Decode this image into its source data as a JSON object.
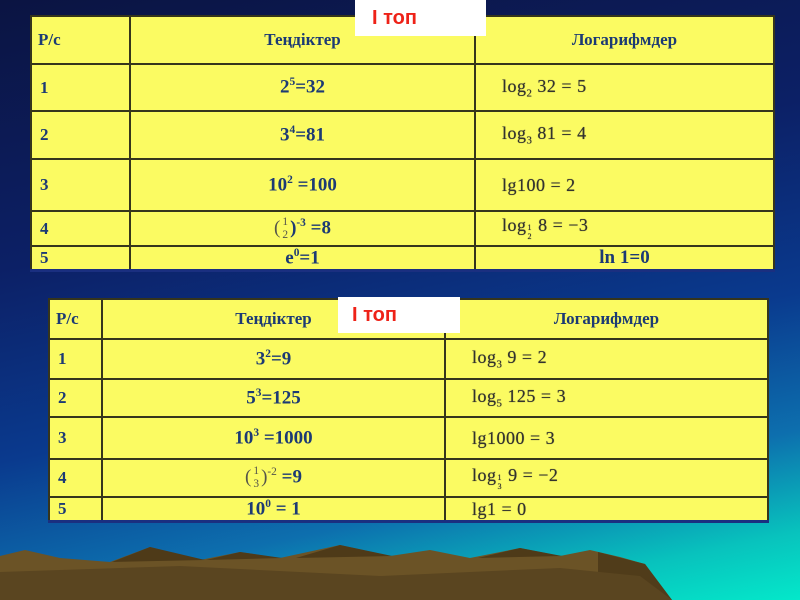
{
  "slide": {
    "group_label_top": "І топ",
    "group_label_middle": "І топ"
  },
  "colors": {
    "table_bg": "#FBFB62",
    "text_navy": "#1C3A74",
    "label_red": "#EE2218",
    "bg_navy_top": "#0B1442",
    "bg_teal_bottom": "#04E8CA",
    "mountain_brown": "#6B5326",
    "mountain_shadow": "#4E3A18"
  },
  "tables": [
    {
      "title": "equations-group-1",
      "headers": [
        "Р/с",
        "Теңдіктер",
        "Логарифмдер"
      ],
      "rows": [
        {
          "num": "1",
          "eq": [
            {
              "t": "txt",
              "v": "2"
            },
            {
              "t": "sup",
              "v": "5"
            },
            {
              "t": "txt",
              "v": "=32"
            }
          ],
          "log": [
            {
              "t": "txt",
              "v": "log"
            },
            {
              "t": "sub",
              "v": "2"
            },
            {
              "t": "txt",
              "v": " 32 = 5"
            }
          ],
          "log_style": "img"
        },
        {
          "num": "2",
          "eq": [
            {
              "t": "txt",
              "v": "3"
            },
            {
              "t": "sup",
              "v": "4"
            },
            {
              "t": "txt",
              "v": "=81"
            }
          ],
          "log": [
            {
              "t": "txt",
              "v": "log"
            },
            {
              "t": "sub",
              "v": "3"
            },
            {
              "t": "txt",
              "v": " 81 = 4"
            }
          ],
          "log_style": "img"
        },
        {
          "num": "3",
          "eq": [
            {
              "t": "txt",
              "v": "10"
            },
            {
              "t": "sup",
              "v": "2"
            },
            {
              "t": "txt",
              "v": " =100"
            }
          ],
          "log": [
            {
              "t": "txt",
              "v": "lg100 = 2"
            }
          ],
          "log_style": "img"
        },
        {
          "num": "4",
          "eq": [
            {
              "t": "faint",
              "v": "("
            },
            {
              "t": "frac",
              "n": "1",
              "d": "2"
            },
            {
              "t": "txt",
              "v": ")"
            },
            {
              "t": "sup",
              "v": "-3"
            },
            {
              "t": "txt",
              "v": " =8"
            }
          ],
          "log": [
            {
              "t": "txt",
              "v": "log"
            },
            {
              "t": "subfrac",
              "n": "1",
              "d": "2"
            },
            {
              "t": "txt",
              "v": " 8 = −3"
            }
          ],
          "log_style": "img"
        },
        {
          "num": "5",
          "eq": [
            {
              "t": "txt",
              "v": "e"
            },
            {
              "t": "sup",
              "v": "0"
            },
            {
              "t": "txt",
              "v": "=1"
            }
          ],
          "log": [
            {
              "t": "txt",
              "v": "ln 1=0"
            }
          ],
          "log_style": "navy"
        }
      ]
    },
    {
      "title": "equations-group-2",
      "headers": [
        "Р/с",
        "Теңдіктер",
        "Логарифмдер"
      ],
      "rows": [
        {
          "num": "1",
          "eq": [
            {
              "t": "txt",
              "v": "3"
            },
            {
              "t": "sup",
              "v": "2"
            },
            {
              "t": "txt",
              "v": "=9"
            }
          ],
          "log": [
            {
              "t": "txt",
              "v": "log"
            },
            {
              "t": "sub",
              "v": "3"
            },
            {
              "t": "txt",
              "v": " 9 = 2"
            }
          ],
          "log_style": "img"
        },
        {
          "num": "2",
          "eq": [
            {
              "t": "txt",
              "v": "5"
            },
            {
              "t": "sup",
              "v": "3"
            },
            {
              "t": "txt",
              "v": "=125"
            }
          ],
          "log": [
            {
              "t": "txt",
              "v": "log"
            },
            {
              "t": "sub",
              "v": "5"
            },
            {
              "t": "txt",
              "v": " 125 = 3"
            }
          ],
          "log_style": "img"
        },
        {
          "num": "3",
          "eq": [
            {
              "t": "txt",
              "v": "10"
            },
            {
              "t": "sup",
              "v": "3"
            },
            {
              "t": "txt",
              "v": " =1000"
            }
          ],
          "log": [
            {
              "t": "txt",
              "v": "lg1000 = 3"
            }
          ],
          "log_style": "img"
        },
        {
          "num": "4",
          "eq": [
            {
              "t": "faint",
              "v": "("
            },
            {
              "t": "frac",
              "n": "1",
              "d": "3"
            },
            {
              "t": "faint",
              "v": ")"
            },
            {
              "t": "fsup",
              "v": "-2"
            },
            {
              "t": "txt",
              "v": " =9"
            }
          ],
          "log": [
            {
              "t": "txt",
              "v": "log"
            },
            {
              "t": "subfrac",
              "n": "1",
              "d": "3"
            },
            {
              "t": "txt",
              "v": " 9 = −2"
            }
          ],
          "log_style": "img"
        },
        {
          "num": "5",
          "eq": [
            {
              "t": "txt",
              "v": "10"
            },
            {
              "t": "sup",
              "v": "0"
            },
            {
              "t": "txt",
              "v": " = 1"
            }
          ],
          "log": [
            {
              "t": "txt",
              "v": "lg1 = 0"
            }
          ],
          "log_style": "img"
        }
      ]
    }
  ]
}
